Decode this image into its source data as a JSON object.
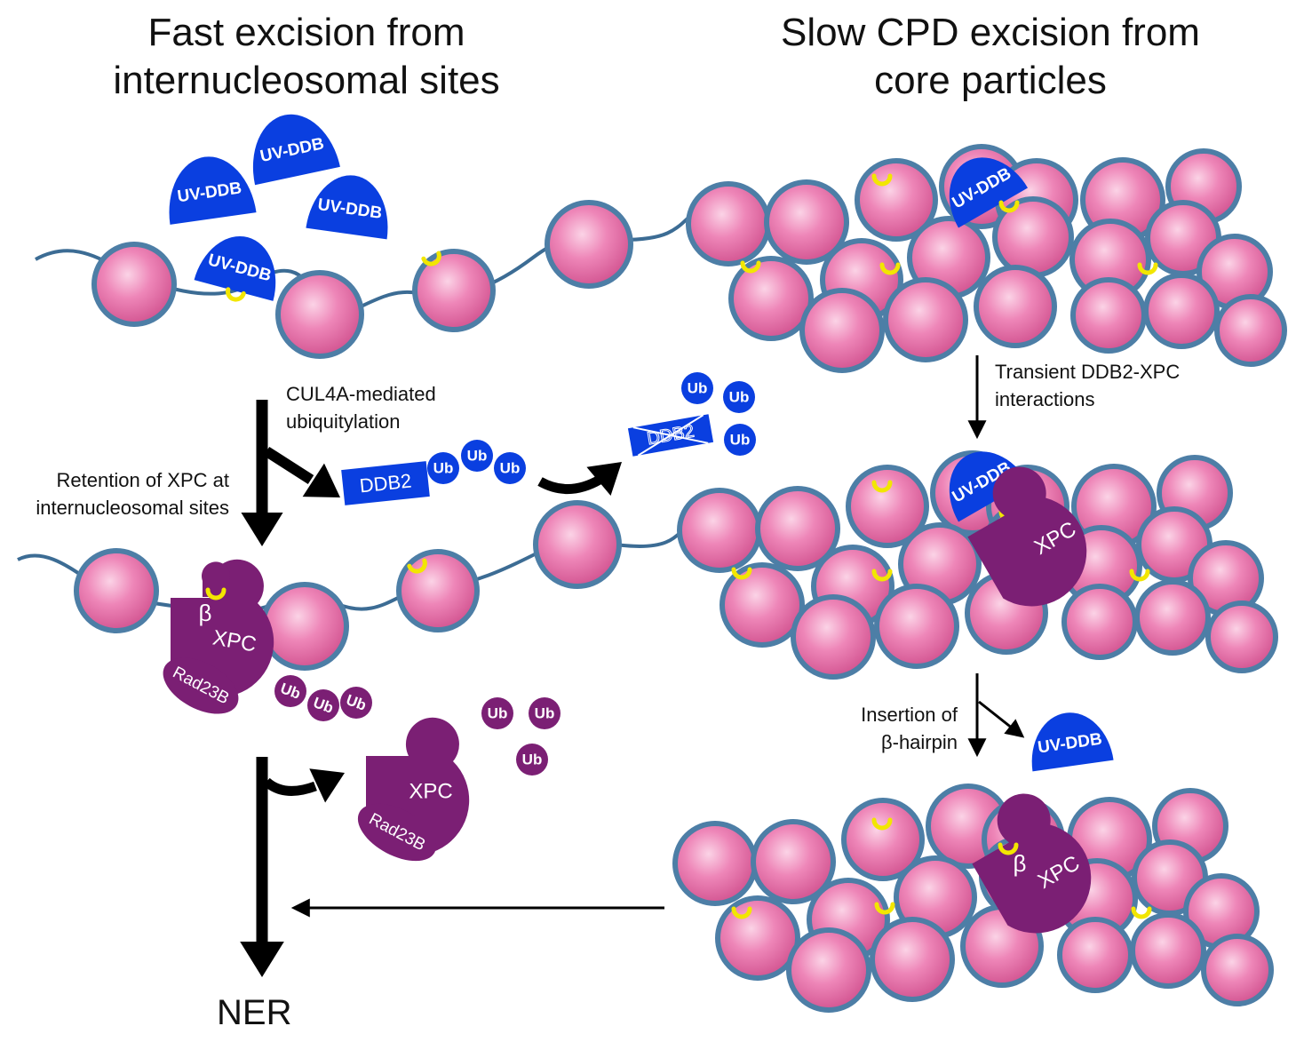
{
  "titles": {
    "left": [
      "Fast excision from",
      "internucleosomal sites"
    ],
    "right": [
      "Slow CPD excision from",
      "core particles"
    ]
  },
  "labels": {
    "cul4a": [
      "CUL4A-mediated",
      "ubiquitylation"
    ],
    "retention": [
      "Retention of XPC at",
      "internucleosomal sites"
    ],
    "transient": [
      "Transient DDB2-XPC",
      "interactions"
    ],
    "insertion": [
      "Insertion of",
      "β-hairpin"
    ],
    "ner": "NER"
  },
  "molecules": {
    "uvddb": "UV-DDB",
    "ddb2": "DDB2",
    "ub": "Ub",
    "xpc": "XPC",
    "rad23b": "Rad23B",
    "beta": "β"
  },
  "colors": {
    "nucleosome": "#e070a6",
    "nucleosome_rim": "#4d7ea6",
    "linker_dna": "#3c6c94",
    "uvddb": "#0a3fe0",
    "xpc": "#7b1f74",
    "cpd_lesion": "#f2e600",
    "arrow": "#000000"
  }
}
